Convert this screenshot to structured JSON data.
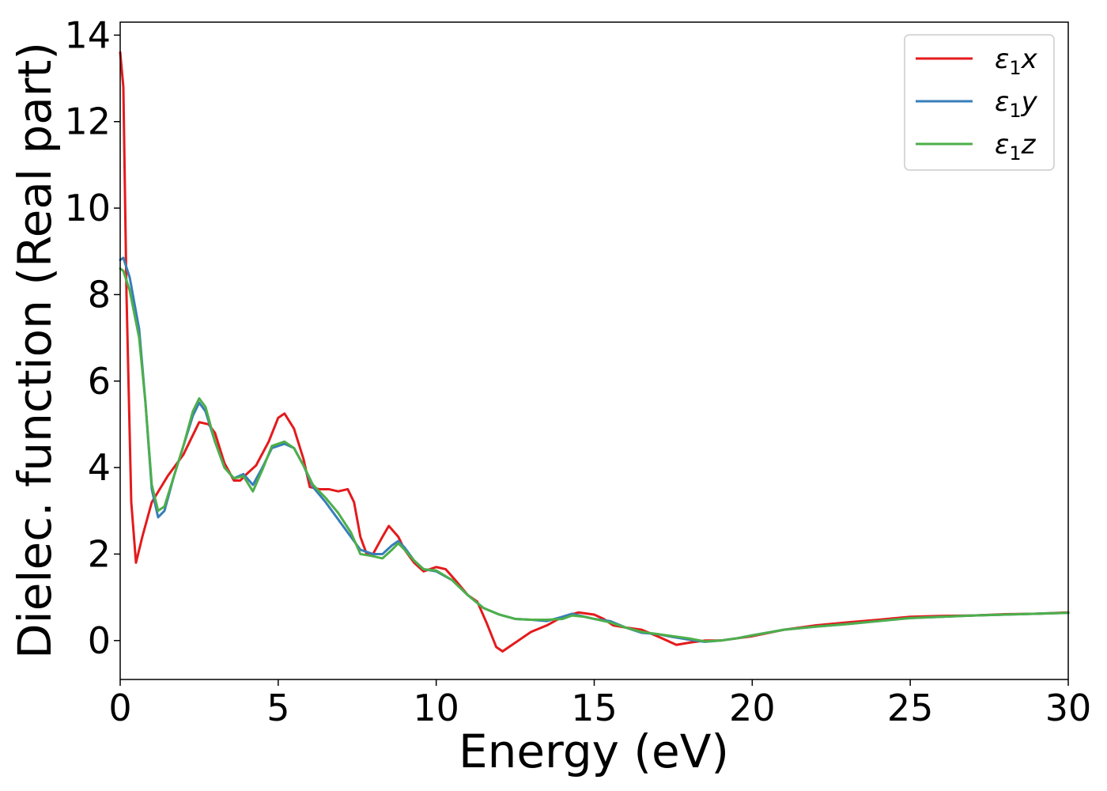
{
  "chart_data": {
    "type": "line",
    "title": "",
    "xlabel": "Energy (eV)",
    "ylabel": "Dielec. function (Real part)",
    "xlim": [
      0,
      30
    ],
    "ylim": [
      -0.9,
      14.3
    ],
    "xticks": [
      0,
      5,
      10,
      15,
      20,
      25,
      30
    ],
    "yticks": [
      0,
      2,
      4,
      6,
      8,
      10,
      12,
      14
    ],
    "grid": false,
    "legend_position": "top-right",
    "series": [
      {
        "name": "ε₁x",
        "legend_main": "ε",
        "legend_sub": "1",
        "legend_var": "x",
        "color": "#e41a1c",
        "points": [
          [
            0.0,
            13.6
          ],
          [
            0.1,
            12.8
          ],
          [
            0.2,
            8.0
          ],
          [
            0.35,
            3.2
          ],
          [
            0.5,
            1.8
          ],
          [
            0.7,
            2.4
          ],
          [
            1.0,
            3.2
          ],
          [
            1.5,
            3.8
          ],
          [
            2.0,
            4.3
          ],
          [
            2.5,
            5.05
          ],
          [
            2.8,
            5.0
          ],
          [
            3.0,
            4.8
          ],
          [
            3.3,
            4.1
          ],
          [
            3.6,
            3.7
          ],
          [
            3.8,
            3.7
          ],
          [
            4.0,
            3.85
          ],
          [
            4.3,
            4.05
          ],
          [
            4.7,
            4.6
          ],
          [
            5.0,
            5.15
          ],
          [
            5.2,
            5.25
          ],
          [
            5.5,
            4.9
          ],
          [
            5.8,
            4.2
          ],
          [
            6.0,
            3.55
          ],
          [
            6.3,
            3.5
          ],
          [
            6.6,
            3.5
          ],
          [
            6.9,
            3.45
          ],
          [
            7.2,
            3.5
          ],
          [
            7.4,
            3.2
          ],
          [
            7.6,
            2.4
          ],
          [
            7.8,
            2.0
          ],
          [
            8.0,
            2.0
          ],
          [
            8.3,
            2.4
          ],
          [
            8.5,
            2.65
          ],
          [
            8.8,
            2.4
          ],
          [
            9.0,
            2.1
          ],
          [
            9.3,
            1.8
          ],
          [
            9.6,
            1.6
          ],
          [
            10.0,
            1.7
          ],
          [
            10.3,
            1.65
          ],
          [
            10.6,
            1.4
          ],
          [
            11.0,
            1.05
          ],
          [
            11.3,
            0.9
          ],
          [
            11.6,
            0.4
          ],
          [
            11.9,
            -0.15
          ],
          [
            12.1,
            -0.25
          ],
          [
            12.4,
            -0.1
          ],
          [
            12.7,
            0.05
          ],
          [
            13.0,
            0.2
          ],
          [
            13.5,
            0.35
          ],
          [
            14.0,
            0.55
          ],
          [
            14.5,
            0.65
          ],
          [
            15.0,
            0.6
          ],
          [
            15.3,
            0.5
          ],
          [
            15.6,
            0.35
          ],
          [
            16.0,
            0.3
          ],
          [
            16.5,
            0.25
          ],
          [
            17.0,
            0.1
          ],
          [
            17.3,
            0.0
          ],
          [
            17.6,
            -0.1
          ],
          [
            18.0,
            -0.05
          ],
          [
            18.5,
            0.0
          ],
          [
            19.0,
            0.0
          ],
          [
            19.5,
            0.05
          ],
          [
            20.0,
            0.1
          ],
          [
            21.0,
            0.25
          ],
          [
            22.0,
            0.35
          ],
          [
            23.0,
            0.42
          ],
          [
            24.0,
            0.48
          ],
          [
            25.0,
            0.55
          ],
          [
            26.0,
            0.57
          ],
          [
            27.0,
            0.58
          ],
          [
            28.0,
            0.61
          ],
          [
            29.0,
            0.62
          ],
          [
            30.0,
            0.65
          ]
        ]
      },
      {
        "name": "ε₁y",
        "legend_main": "ε",
        "legend_sub": "1",
        "legend_var": "y",
        "color": "#377eb8",
        "points": [
          [
            0.0,
            8.8
          ],
          [
            0.1,
            8.85
          ],
          [
            0.3,
            8.4
          ],
          [
            0.6,
            7.2
          ],
          [
            0.8,
            5.5
          ],
          [
            1.0,
            3.5
          ],
          [
            1.2,
            2.85
          ],
          [
            1.4,
            3.0
          ],
          [
            1.7,
            3.8
          ],
          [
            2.0,
            4.5
          ],
          [
            2.3,
            5.2
          ],
          [
            2.5,
            5.5
          ],
          [
            2.7,
            5.3
          ],
          [
            3.0,
            4.6
          ],
          [
            3.3,
            4.0
          ],
          [
            3.6,
            3.75
          ],
          [
            3.9,
            3.85
          ],
          [
            4.2,
            3.6
          ],
          [
            4.5,
            4.0
          ],
          [
            4.8,
            4.45
          ],
          [
            5.2,
            4.55
          ],
          [
            5.5,
            4.45
          ],
          [
            5.8,
            4.05
          ],
          [
            6.1,
            3.55
          ],
          [
            6.5,
            3.2
          ],
          [
            6.9,
            2.8
          ],
          [
            7.3,
            2.4
          ],
          [
            7.6,
            2.1
          ],
          [
            8.0,
            2.0
          ],
          [
            8.3,
            2.0
          ],
          [
            8.6,
            2.2
          ],
          [
            8.8,
            2.3
          ],
          [
            9.0,
            2.15
          ],
          [
            9.3,
            1.85
          ],
          [
            9.6,
            1.65
          ],
          [
            10.0,
            1.6
          ],
          [
            10.5,
            1.4
          ],
          [
            11.0,
            1.05
          ],
          [
            11.5,
            0.75
          ],
          [
            12.0,
            0.6
          ],
          [
            12.5,
            0.5
          ],
          [
            13.0,
            0.48
          ],
          [
            13.5,
            0.45
          ],
          [
            14.0,
            0.55
          ],
          [
            14.3,
            0.62
          ],
          [
            14.7,
            0.55
          ],
          [
            15.0,
            0.5
          ],
          [
            15.5,
            0.45
          ],
          [
            16.0,
            0.3
          ],
          [
            16.5,
            0.18
          ],
          [
            17.0,
            0.15
          ],
          [
            17.5,
            0.08
          ],
          [
            18.0,
            0.02
          ],
          [
            18.5,
            -0.03
          ],
          [
            19.0,
            0.0
          ],
          [
            19.5,
            0.05
          ],
          [
            20.0,
            0.12
          ],
          [
            21.0,
            0.25
          ],
          [
            22.0,
            0.32
          ],
          [
            23.0,
            0.38
          ],
          [
            24.0,
            0.45
          ],
          [
            25.0,
            0.52
          ],
          [
            26.0,
            0.55
          ],
          [
            27.0,
            0.58
          ],
          [
            28.0,
            0.6
          ],
          [
            29.0,
            0.62
          ],
          [
            30.0,
            0.64
          ]
        ]
      },
      {
        "name": "ε₁z",
        "legend_main": "ε",
        "legend_sub": "1",
        "legend_var": "z",
        "color": "#4daf4a",
        "points": [
          [
            0.0,
            8.6
          ],
          [
            0.1,
            8.55
          ],
          [
            0.3,
            8.1
          ],
          [
            0.6,
            7.0
          ],
          [
            0.8,
            5.5
          ],
          [
            1.0,
            3.6
          ],
          [
            1.2,
            3.0
          ],
          [
            1.4,
            3.1
          ],
          [
            1.7,
            3.8
          ],
          [
            2.0,
            4.5
          ],
          [
            2.3,
            5.3
          ],
          [
            2.5,
            5.6
          ],
          [
            2.7,
            5.4
          ],
          [
            3.0,
            4.6
          ],
          [
            3.3,
            4.0
          ],
          [
            3.6,
            3.75
          ],
          [
            3.9,
            3.8
          ],
          [
            4.2,
            3.45
          ],
          [
            4.5,
            3.95
          ],
          [
            4.8,
            4.5
          ],
          [
            5.2,
            4.6
          ],
          [
            5.5,
            4.45
          ],
          [
            5.8,
            4.05
          ],
          [
            6.1,
            3.6
          ],
          [
            6.5,
            3.3
          ],
          [
            6.9,
            2.95
          ],
          [
            7.3,
            2.5
          ],
          [
            7.6,
            2.0
          ],
          [
            8.0,
            1.95
          ],
          [
            8.3,
            1.9
          ],
          [
            8.6,
            2.1
          ],
          [
            8.8,
            2.25
          ],
          [
            9.0,
            2.1
          ],
          [
            9.3,
            1.85
          ],
          [
            9.6,
            1.65
          ],
          [
            10.0,
            1.62
          ],
          [
            10.5,
            1.4
          ],
          [
            11.0,
            1.05
          ],
          [
            11.5,
            0.75
          ],
          [
            12.0,
            0.6
          ],
          [
            12.5,
            0.5
          ],
          [
            13.0,
            0.48
          ],
          [
            13.5,
            0.48
          ],
          [
            14.0,
            0.5
          ],
          [
            14.3,
            0.58
          ],
          [
            14.7,
            0.55
          ],
          [
            15.0,
            0.5
          ],
          [
            15.5,
            0.42
          ],
          [
            16.0,
            0.3
          ],
          [
            16.5,
            0.2
          ],
          [
            17.0,
            0.15
          ],
          [
            17.5,
            0.1
          ],
          [
            18.0,
            0.05
          ],
          [
            18.5,
            -0.02
          ],
          [
            19.0,
            0.0
          ],
          [
            19.5,
            0.05
          ],
          [
            20.0,
            0.12
          ],
          [
            21.0,
            0.25
          ],
          [
            22.0,
            0.32
          ],
          [
            23.0,
            0.38
          ],
          [
            24.0,
            0.45
          ],
          [
            25.0,
            0.52
          ],
          [
            26.0,
            0.55
          ],
          [
            27.0,
            0.58
          ],
          [
            28.0,
            0.6
          ],
          [
            29.0,
            0.62
          ],
          [
            30.0,
            0.64
          ]
        ]
      }
    ]
  }
}
